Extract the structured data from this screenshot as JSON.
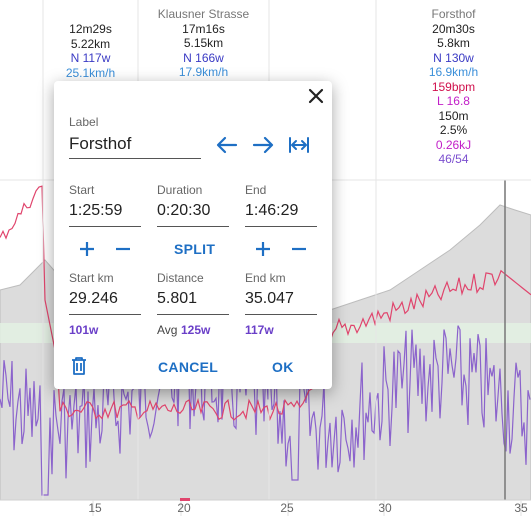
{
  "segments": [
    {
      "name": "",
      "time": "12m29s",
      "distance": "5.22km",
      "heading": "N 117w",
      "speed": "25.1km/h"
    },
    {
      "name": "Klausner Strasse",
      "time": "17m16s",
      "distance": "5.15km",
      "heading": "N 166w",
      "speed": "17.9km/h"
    },
    {
      "name": "Forsthof",
      "time": "20m30s",
      "distance": "5.8km",
      "heading": "N 130w",
      "speed": "16.9km/h",
      "heart_rate": "159bpm",
      "l_value": "L 16.8",
      "elevation": "150m",
      "grade": "2.5%",
      "energy": "0.26kJ",
      "cadence": "46/54"
    }
  ],
  "x_axis": {
    "ticks": [
      "15",
      "20",
      "25",
      "30",
      "35"
    ]
  },
  "colors": {
    "heart_rate": "#e0456d",
    "power": "#8b63cc",
    "elevation_fill": "#d9d9d9",
    "accent": "#1e6fc4"
  },
  "dialog": {
    "label_caption": "Label",
    "label_value": "Forsthof",
    "start_caption": "Start",
    "start_value": "1:25:59",
    "duration_caption": "Duration",
    "duration_value": "0:20:30",
    "end_caption": "End",
    "end_value": "1:46:29",
    "split_label": "SPLIT",
    "start_km_caption": "Start km",
    "start_km_value": "29.246",
    "distance_caption": "Distance",
    "distance_value": "5.801",
    "end_km_caption": "End km",
    "end_km_value": "35.047",
    "start_power": "101w",
    "avg_caption": "Avg",
    "avg_power": "125w",
    "end_power": "117w",
    "cancel_label": "CANCEL",
    "ok_label": "OK"
  }
}
